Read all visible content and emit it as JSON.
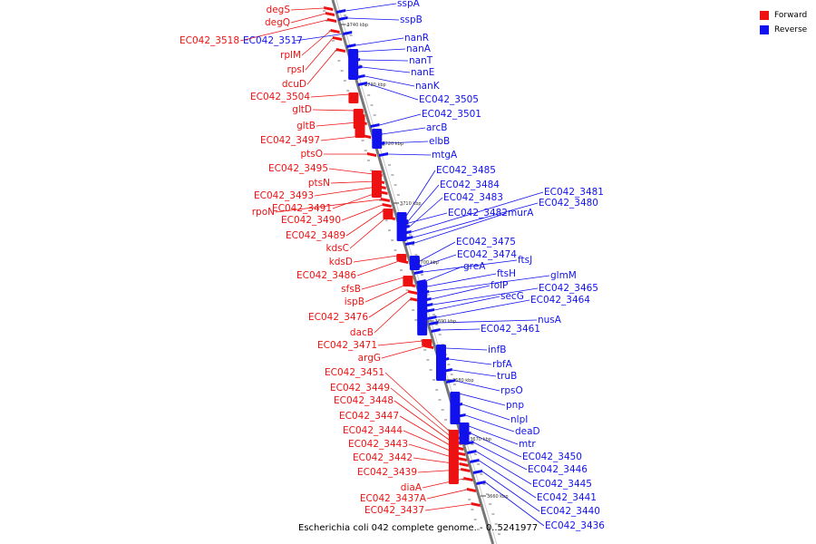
{
  "colors": {
    "forward": "#ee1111",
    "reverse": "#1111ee",
    "backbone": "#888888"
  },
  "legend": [
    {
      "label": "Forward",
      "color": "#ee1111"
    },
    {
      "label": "Reverse",
      "color": "#1111ee"
    }
  ],
  "caption": "Escherichia coli 042 complete genome. - 0..5241977",
  "ticks": [
    "3740 kbp",
    "3730 kbp",
    "3720 kbp",
    "3710 kbp",
    "3700 kbp",
    "3690 kbp",
    "3680 kbp",
    "3670 kbp",
    "3660 kbp"
  ],
  "genes_forward": [
    "degS",
    "degQ",
    "EC042_3518",
    "rplM",
    "rpsI",
    "dcuD",
    "EC042_3504",
    "gltD",
    "gltB",
    "EC042_3497",
    "ptsO",
    "EC042_3495",
    "ptsN",
    "EC042_3493",
    "EC042_3491",
    "rpoN",
    "EC042_3490",
    "EC042_3489",
    "kdsC",
    "kdsD",
    "EC042_3486",
    "sfsB",
    "ispB",
    "EC042_3476",
    "dacB",
    "EC042_3471",
    "argG",
    "EC042_3451",
    "EC042_3449",
    "EC042_3448",
    "EC042_3447",
    "EC042_3444",
    "EC042_3443",
    "EC042_3442",
    "EC042_3439",
    "diaA",
    "EC042_3437A",
    "EC042_3437"
  ],
  "genes_reverse": [
    "sspA",
    "sspB",
    "EC042_3517",
    "nanR",
    "nanA",
    "nanT",
    "nanE",
    "nanK",
    "EC042_3505",
    "EC042_3501",
    "arcB",
    "elbB",
    "mtgA",
    "EC042_3485",
    "EC042_3484",
    "EC042_3483",
    "EC042_3481",
    "EC042_3480",
    "EC042_3482",
    "murA",
    "EC042_3475",
    "EC042_3474",
    "ftsJ",
    "greA",
    "ftsH",
    "glmM",
    "folP",
    "EC042_3465",
    "secG",
    "EC042_3464",
    "nusA",
    "EC042_3461",
    "infB",
    "rbfA",
    "truB",
    "rpsO",
    "pnp",
    "nlpI",
    "deaD",
    "mtr",
    "EC042_3450",
    "EC042_3446",
    "EC042_3445",
    "EC042_3441",
    "EC042_3440",
    "EC042_3436"
  ]
}
